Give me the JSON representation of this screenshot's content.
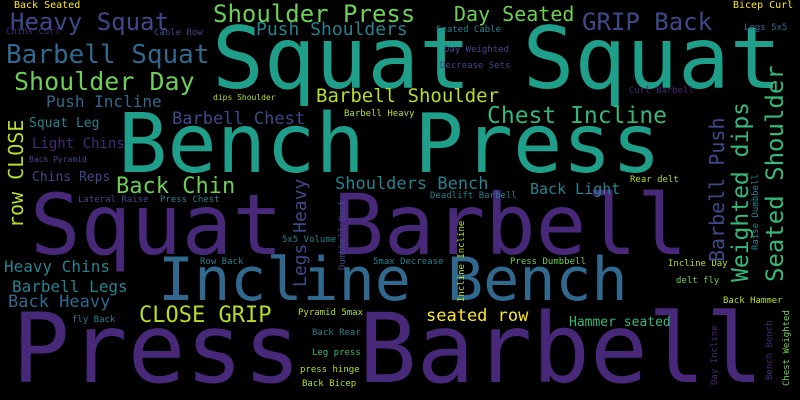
{
  "image": {
    "background_color": "#000000"
  },
  "words": [
    {
      "text": "Press Barbell",
      "color": "#482878"
    },
    {
      "text": "Squat Barbell",
      "color": "#482878"
    },
    {
      "text": "Bench Press",
      "color": "#1f9e89"
    },
    {
      "text": "Squat Squat",
      "color": "#1f9e89"
    },
    {
      "text": "Incline Bench",
      "color": "#31688e"
    },
    {
      "text": "Shoulder Press",
      "color": "#6ece58"
    },
    {
      "text": "Heavy Squat",
      "color": "#3e4989"
    },
    {
      "text": "Day Seated",
      "color": "#6ece58"
    },
    {
      "text": "GRIP Back",
      "color": "#3e4989"
    },
    {
      "text": "Barbell Squat",
      "color": "#31688e"
    },
    {
      "text": "Shoulder Day",
      "color": "#6ece58"
    },
    {
      "text": "Push Shoulders",
      "color": "#26828e"
    },
    {
      "text": "Barbell Shoulder",
      "color": "#b5de2b"
    },
    {
      "text": "Chest Incline",
      "color": "#35b779"
    },
    {
      "text": "Push Incline",
      "color": "#31688e"
    },
    {
      "text": "Barbell Chest",
      "color": "#3e4989"
    },
    {
      "text": "Back Chin",
      "color": "#6ece58"
    },
    {
      "text": "Shoulders Bench",
      "color": "#26828e"
    },
    {
      "text": "Back Light",
      "color": "#26828e"
    },
    {
      "text": "CLOSE GRIP",
      "color": "#b5de2b"
    },
    {
      "text": "Heavy Chins",
      "color": "#26828e"
    },
    {
      "text": "Barbell Legs",
      "color": "#26828e"
    },
    {
      "text": "Back Heavy",
      "color": "#31688e"
    },
    {
      "text": "seated row",
      "color": "#fde725"
    },
    {
      "text": "Squat Leg",
      "color": "#26828e"
    },
    {
      "text": "Light Chins",
      "color": "#482878"
    },
    {
      "text": "Chins Reps",
      "color": "#3e4989"
    },
    {
      "text": "Hammer seated",
      "color": "#35b779"
    },
    {
      "text": "Back Seated",
      "color": "#fde725"
    },
    {
      "text": "Chins Curl",
      "color": "#482878"
    },
    {
      "text": "Cable Row",
      "color": "#3e4989"
    },
    {
      "text": "Bicep Curl",
      "color": "#fde725"
    },
    {
      "text": "Legs 5x5",
      "color": "#31688e"
    },
    {
      "text": "Seated Cable",
      "color": "#26828e"
    },
    {
      "text": "Day Weighted",
      "color": "#3e4989"
    },
    {
      "text": "Decrease Sets",
      "color": "#3e4989"
    },
    {
      "text": "dips Shoulder",
      "color": "#b5de2b"
    },
    {
      "text": "Curl Barbell",
      "color": "#482878"
    },
    {
      "text": "Barbell Heavy",
      "color": "#b5de2b"
    },
    {
      "text": "Back Pyramid",
      "color": "#3e4989"
    },
    {
      "text": "Rear delt",
      "color": "#b5de2b"
    },
    {
      "text": "Lateral Raise",
      "color": "#3e4989"
    },
    {
      "text": "Press Chest",
      "color": "#26828e"
    },
    {
      "text": "Deadlift Barbell",
      "color": "#26828e"
    },
    {
      "text": "5x5 Volume",
      "color": "#26828e"
    },
    {
      "text": "Row Back",
      "color": "#26828e"
    },
    {
      "text": "5max Decrease",
      "color": "#26828e"
    },
    {
      "text": "Press Dumbbell",
      "color": "#6ece58"
    },
    {
      "text": "Incline Day",
      "color": "#b5de2b"
    },
    {
      "text": "delt fly",
      "color": "#6ece58"
    },
    {
      "text": "fly Back",
      "color": "#26828e"
    },
    {
      "text": "Pyramid 5max",
      "color": "#b5de2b"
    },
    {
      "text": "Back Rear",
      "color": "#26828e"
    },
    {
      "text": "Leg press",
      "color": "#35b779"
    },
    {
      "text": "press hinge",
      "color": "#b5de2b"
    },
    {
      "text": "Back Bicep",
      "color": "#b5de2b"
    },
    {
      "text": "Back Hammer",
      "color": "#b5de2b"
    },
    {
      "text": "row CLOSE",
      "color": "#b5de2b"
    },
    {
      "text": "Legs Heavy",
      "color": "#3e4989"
    },
    {
      "text": "Barbell Push",
      "color": "#3e4989"
    },
    {
      "text": "Weighted dips",
      "color": "#35b779"
    },
    {
      "text": "Seated Shoulder",
      "color": "#35b779"
    },
    {
      "text": "Raise Dumbbell",
      "color": "#26828e"
    },
    {
      "text": "Dumbbell Back",
      "color": "#3e4989"
    },
    {
      "text": "Incline Incline",
      "color": "#b5de2b"
    },
    {
      "text": "Day Incline",
      "color": "#482878"
    },
    {
      "text": "Bench Bench",
      "color": "#482878"
    },
    {
      "text": "Chest Weighted",
      "color": "#6ece58"
    }
  ]
}
